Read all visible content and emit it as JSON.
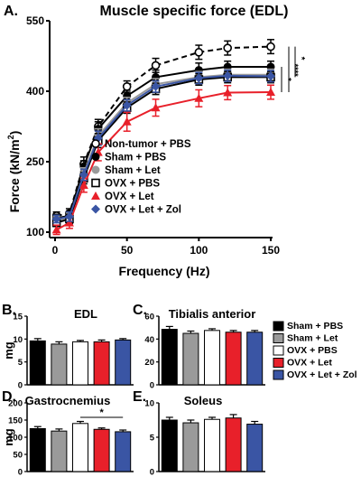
{
  "chart_data": [
    {
      "type": "line",
      "panel_label": "A.",
      "title": "Muscle specific force (EDL)",
      "xlabel": "Frequency (Hz)",
      "ylabel_main": "Force (kN/m",
      "ylabel_sup": "2",
      "ylabel_tail": ")",
      "x": [
        1,
        10,
        20,
        30,
        50,
        70,
        100,
        120,
        150
      ],
      "xlim": [
        0,
        150
      ],
      "ylim": [
        100,
        550
      ],
      "xticks": [
        "0",
        "50",
        "100",
        "150"
      ],
      "yticks": [
        "100",
        "250",
        "400",
        "550"
      ],
      "legend_position": "center-right",
      "series": [
        {
          "name": "Non-tumor + PBS",
          "color": "#000000",
          "marker": "open-circle",
          "dash": true,
          "values": [
            135,
            140,
            245,
            325,
            410,
            455,
            483,
            492,
            495
          ],
          "err": [
            8,
            10,
            15,
            15,
            12,
            15,
            15,
            15,
            15
          ]
        },
        {
          "name": "Sham + PBS",
          "color": "#000000",
          "marker": "filled-circle",
          "dash": false,
          "values": [
            130,
            135,
            240,
            320,
            390,
            430,
            445,
            452,
            452
          ],
          "err": [
            8,
            10,
            12,
            15,
            12,
            15,
            15,
            12,
            12
          ]
        },
        {
          "name": "Sham + Let",
          "color": "#9a9a9a",
          "marker": "filled-circle",
          "dash": false,
          "values": [
            125,
            130,
            225,
            305,
            375,
            415,
            430,
            435,
            435
          ],
          "err": [
            8,
            10,
            12,
            15,
            12,
            12,
            12,
            12,
            12
          ]
        },
        {
          "name": "OVX + PBS",
          "color": "#000000",
          "marker": "open-square",
          "dash": false,
          "values": [
            120,
            128,
            215,
            295,
            365,
            405,
            425,
            430,
            430
          ],
          "err": [
            8,
            10,
            12,
            15,
            12,
            12,
            12,
            12,
            12
          ]
        },
        {
          "name": "OVX + Let",
          "color": "#e8202a",
          "marker": "triangle",
          "dash": false,
          "values": [
            105,
            120,
            200,
            270,
            335,
            365,
            385,
            397,
            398
          ],
          "err": [
            10,
            12,
            15,
            18,
            20,
            18,
            18,
            15,
            15
          ]
        },
        {
          "name": "OVX + Let + Zol",
          "color": "#3a55a4",
          "marker": "diamond",
          "dash": false,
          "values": [
            128,
            133,
            222,
            300,
            370,
            410,
            428,
            433,
            432
          ],
          "err": [
            8,
            10,
            12,
            15,
            12,
            12,
            12,
            12,
            12
          ]
        }
      ],
      "significance": [
        "****",
        "*",
        "*"
      ]
    },
    {
      "type": "bar",
      "panel_label": "B.",
      "title": "EDL",
      "ylabel": "mg",
      "ylim": [
        0,
        15
      ],
      "yticks": [
        "0",
        "5",
        "10",
        "15"
      ],
      "categories": [
        "Sham + PBS",
        "Sham + Let",
        "OVX + PBS",
        "OVX + Let",
        "OVX + Let + Zol"
      ],
      "values": [
        9.6,
        8.9,
        9.4,
        9.4,
        9.8
      ],
      "err": [
        0.5,
        0.5,
        0.3,
        0.4,
        0.3
      ]
    },
    {
      "type": "bar",
      "panel_label": "C.",
      "title": "Tibialis anterior",
      "ylabel": "",
      "ylim": [
        0,
        60
      ],
      "yticks": [
        "0",
        "20",
        "40",
        "60"
      ],
      "categories": [
        "Sham + PBS",
        "Sham + Let",
        "OVX + PBS",
        "OVX + Let",
        "OVX + Let + Zol"
      ],
      "values": [
        48.5,
        45,
        47.5,
        46,
        46
      ],
      "err": [
        2.5,
        2,
        1.5,
        1.5,
        1.5
      ]
    },
    {
      "type": "bar",
      "panel_label": "D.",
      "title": "Gastrocnemius",
      "ylabel": "mg",
      "ylim": [
        0,
        200
      ],
      "yticks": [
        "0",
        "50",
        "100",
        "150",
        "200"
      ],
      "categories": [
        "Sham + PBS",
        "Sham + Let",
        "OVX + PBS",
        "OVX + Let",
        "OVX + Let + Zol"
      ],
      "values": [
        125,
        118,
        140,
        123,
        116
      ],
      "err": [
        6,
        6,
        6,
        4,
        5
      ],
      "significance": "*"
    },
    {
      "type": "bar",
      "panel_label": "E.",
      "title": "Soleus",
      "ylabel": "",
      "ylim": [
        0,
        10
      ],
      "yticks": [
        "0",
        "5",
        "10"
      ],
      "categories": [
        "Sham + PBS",
        "Sham + Let",
        "OVX + PBS",
        "OVX + Let",
        "OVX + Let + Zol"
      ],
      "values": [
        7.5,
        7.1,
        7.6,
        7.8,
        6.9
      ],
      "err": [
        0.4,
        0.4,
        0.3,
        0.5,
        0.4
      ]
    }
  ],
  "bar_legend": [
    {
      "name": "Sham + PBS",
      "color": "#000000"
    },
    {
      "name": "Sham + Let",
      "color": "#9a9a9a"
    },
    {
      "name": "OVX + PBS",
      "color": "#ffffff"
    },
    {
      "name": "OVX + Let",
      "color": "#e8202a"
    },
    {
      "name": "OVX + Let + Zol",
      "color": "#3a55a4"
    }
  ]
}
